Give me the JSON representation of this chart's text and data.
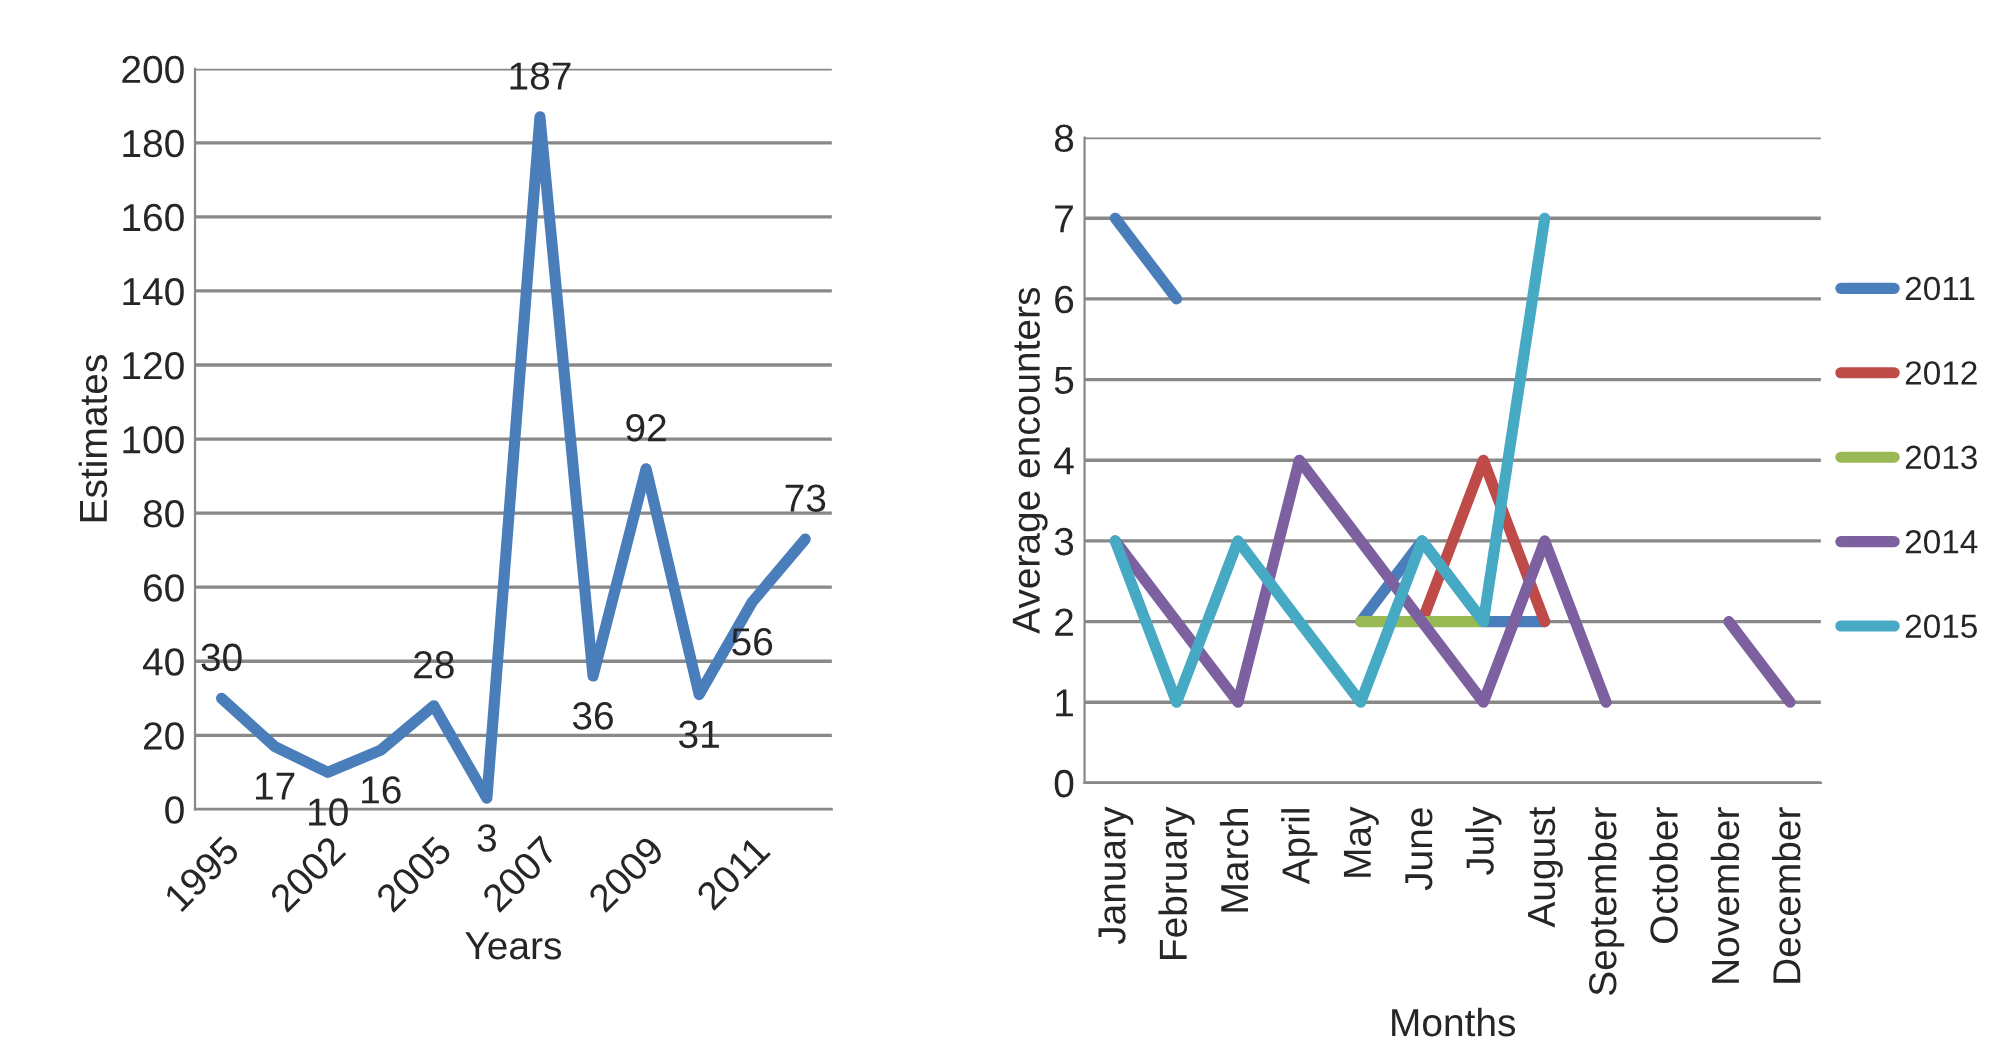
{
  "chart_data": [
    {
      "type": "line",
      "xlabel": "Years",
      "ylabel": "Estimates",
      "categories": [
        "1995",
        null,
        "2002",
        null,
        "2005",
        null,
        "2007",
        null,
        "2009",
        null,
        "2011",
        null
      ],
      "series": [
        {
          "color": "#4a7ebb",
          "values": [
            30,
            17,
            10,
            16,
            28,
            3,
            187,
            36,
            92,
            31,
            56,
            73
          ]
        }
      ],
      "ylim": [
        0,
        200
      ],
      "yticks": [
        0,
        20,
        40,
        60,
        80,
        100,
        120,
        140,
        160,
        180,
        200
      ],
      "grid": "y",
      "data_labels": true,
      "legend": false
    },
    {
      "type": "line",
      "xlabel": "Months",
      "ylabel": "Average encounters",
      "categories": [
        "January",
        "February",
        "March",
        "April",
        "May",
        "June",
        "July",
        "August",
        "September",
        "October",
        "November",
        "December"
      ],
      "series": [
        {
          "name": "2011",
          "color": "#4a7ebb",
          "values": [
            7,
            6,
            null,
            null,
            2,
            3,
            2,
            2,
            null,
            null,
            null,
            null
          ]
        },
        {
          "name": "2012",
          "color": "#be4b48",
          "values": [
            null,
            null,
            null,
            null,
            null,
            2,
            4,
            2,
            null,
            null,
            null,
            null
          ]
        },
        {
          "name": "2013",
          "color": "#98b954",
          "values": [
            null,
            null,
            null,
            null,
            2,
            2,
            2,
            null,
            null,
            null,
            null,
            null
          ]
        },
        {
          "name": "2014",
          "color": "#7d60a0",
          "values": [
            3,
            2,
            1,
            4,
            3,
            2,
            1,
            3,
            1,
            null,
            2,
            1
          ]
        },
        {
          "name": "2015",
          "color": "#46aac5",
          "values": [
            3,
            1,
            3,
            2,
            1,
            3,
            2,
            7,
            null,
            null,
            null,
            null
          ]
        }
      ],
      "ylim": [
        0,
        8
      ],
      "yticks": [
        0,
        1,
        2,
        3,
        4,
        5,
        6,
        7,
        8
      ],
      "grid": "y",
      "legend": "right"
    }
  ]
}
